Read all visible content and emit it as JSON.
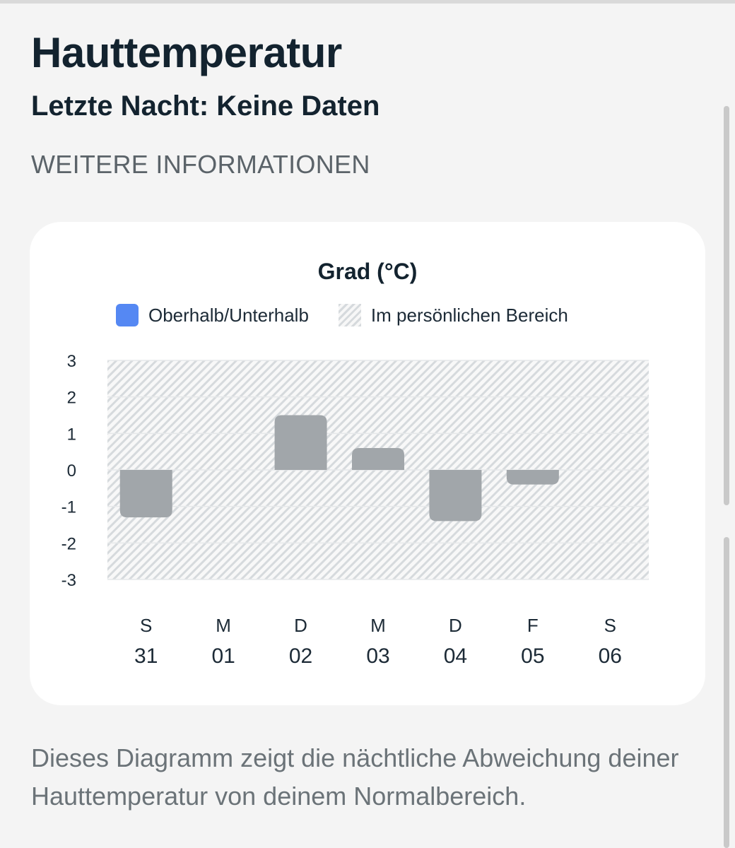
{
  "header": {
    "title": "Hauttemperatur",
    "subtitle": "Letzte Nacht: Keine Daten",
    "more_info_link": "WEITERE INFORMATIONEN"
  },
  "legend": {
    "items": [
      {
        "label": "Oberhalb/Unterhalb",
        "icon": "blue-square-icon"
      },
      {
        "label": "Im persönlichen Bereich",
        "icon": "hatched-square-icon"
      }
    ]
  },
  "colors": {
    "bar": "#a1a6aa",
    "legend_blue": "#5588f3",
    "hatch": "#d6dadd",
    "grid": "#e6e8ea"
  },
  "chart_data": {
    "type": "bar",
    "title": "Grad (°C)",
    "categories": [
      "31",
      "01",
      "02",
      "03",
      "04",
      "05",
      "06"
    ],
    "weekday_labels": [
      "S",
      "M",
      "D",
      "M",
      "D",
      "F",
      "S"
    ],
    "values": [
      -1.3,
      null,
      1.5,
      0.6,
      -1.4,
      -0.4,
      null
    ],
    "ylim": [
      -3,
      3
    ],
    "yticks": [
      "3",
      "2",
      "1",
      "0",
      "-1",
      "-2",
      "-3"
    ],
    "grid": true,
    "personal_range_band": [
      -3,
      3
    ],
    "legend_position": "top"
  },
  "footer": {
    "description": "Dieses Diagramm zeigt die nächtliche Abweichung deiner Hauttemperatur von deinem Normalbereich."
  }
}
